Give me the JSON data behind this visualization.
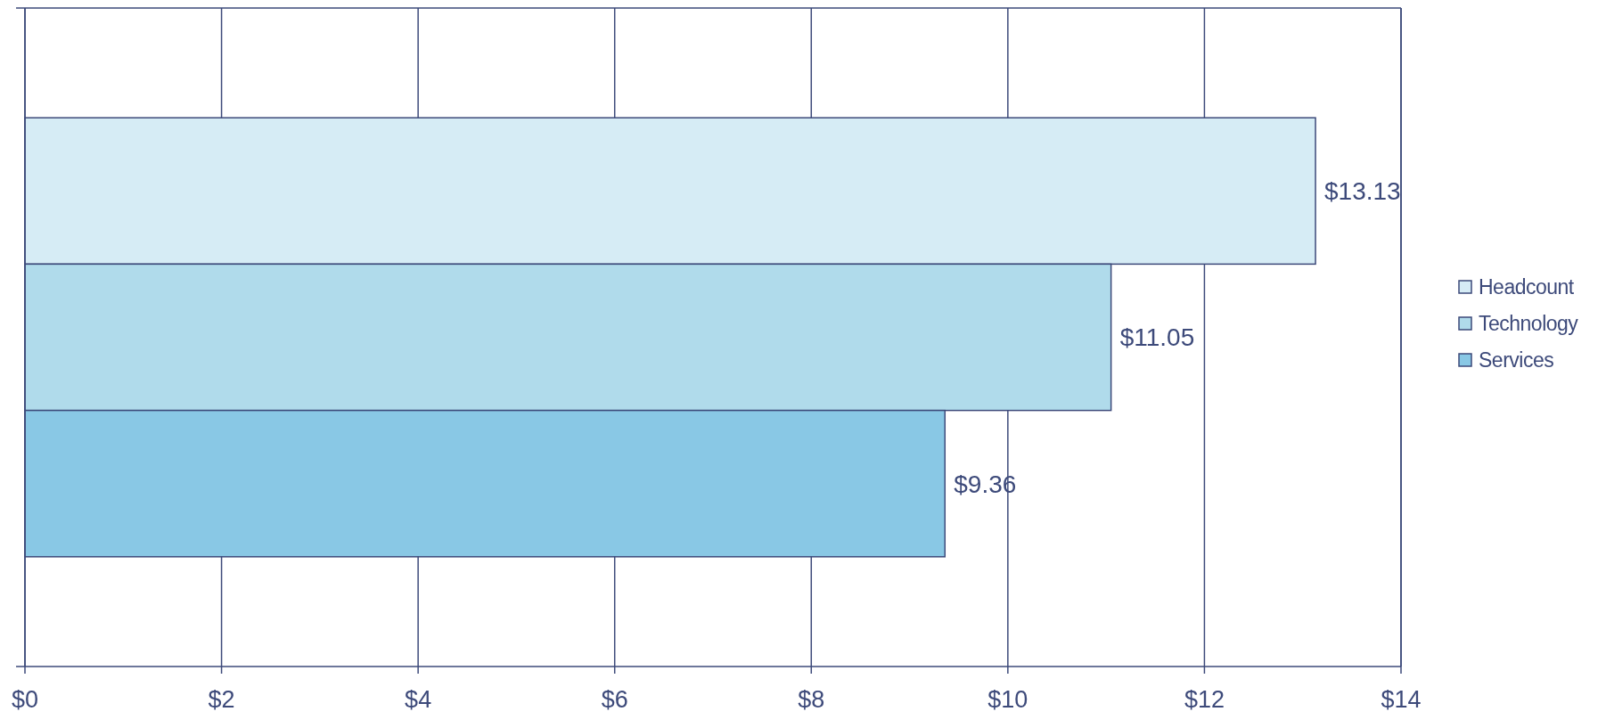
{
  "chart_data": {
    "type": "bar",
    "orientation": "horizontal",
    "categories": [
      null
    ],
    "series": [
      {
        "name": "Headcount",
        "color": "#d6ecf5",
        "values": [
          13.13
        ],
        "value_labels": [
          "$13.13"
        ]
      },
      {
        "name": "Technology",
        "color": "#b0dbeb",
        "values": [
          11.05
        ],
        "value_labels": [
          "$11.05"
        ]
      },
      {
        "name": "Services",
        "color": "#89c8e5",
        "values": [
          9.36
        ],
        "value_labels": [
          "$9.36"
        ]
      }
    ],
    "xlim": [
      0,
      14
    ],
    "xticks": [
      {
        "value": 0,
        "label": "$0"
      },
      {
        "value": 2,
        "label": "$2"
      },
      {
        "value": 4,
        "label": "$4"
      },
      {
        "value": 6,
        "label": "$6"
      },
      {
        "value": 8,
        "label": "$8"
      },
      {
        "value": 10,
        "label": "$10"
      },
      {
        "value": 12,
        "label": "$12"
      },
      {
        "value": 14,
        "label": "$14"
      }
    ],
    "grid": "x",
    "legend": "right"
  }
}
